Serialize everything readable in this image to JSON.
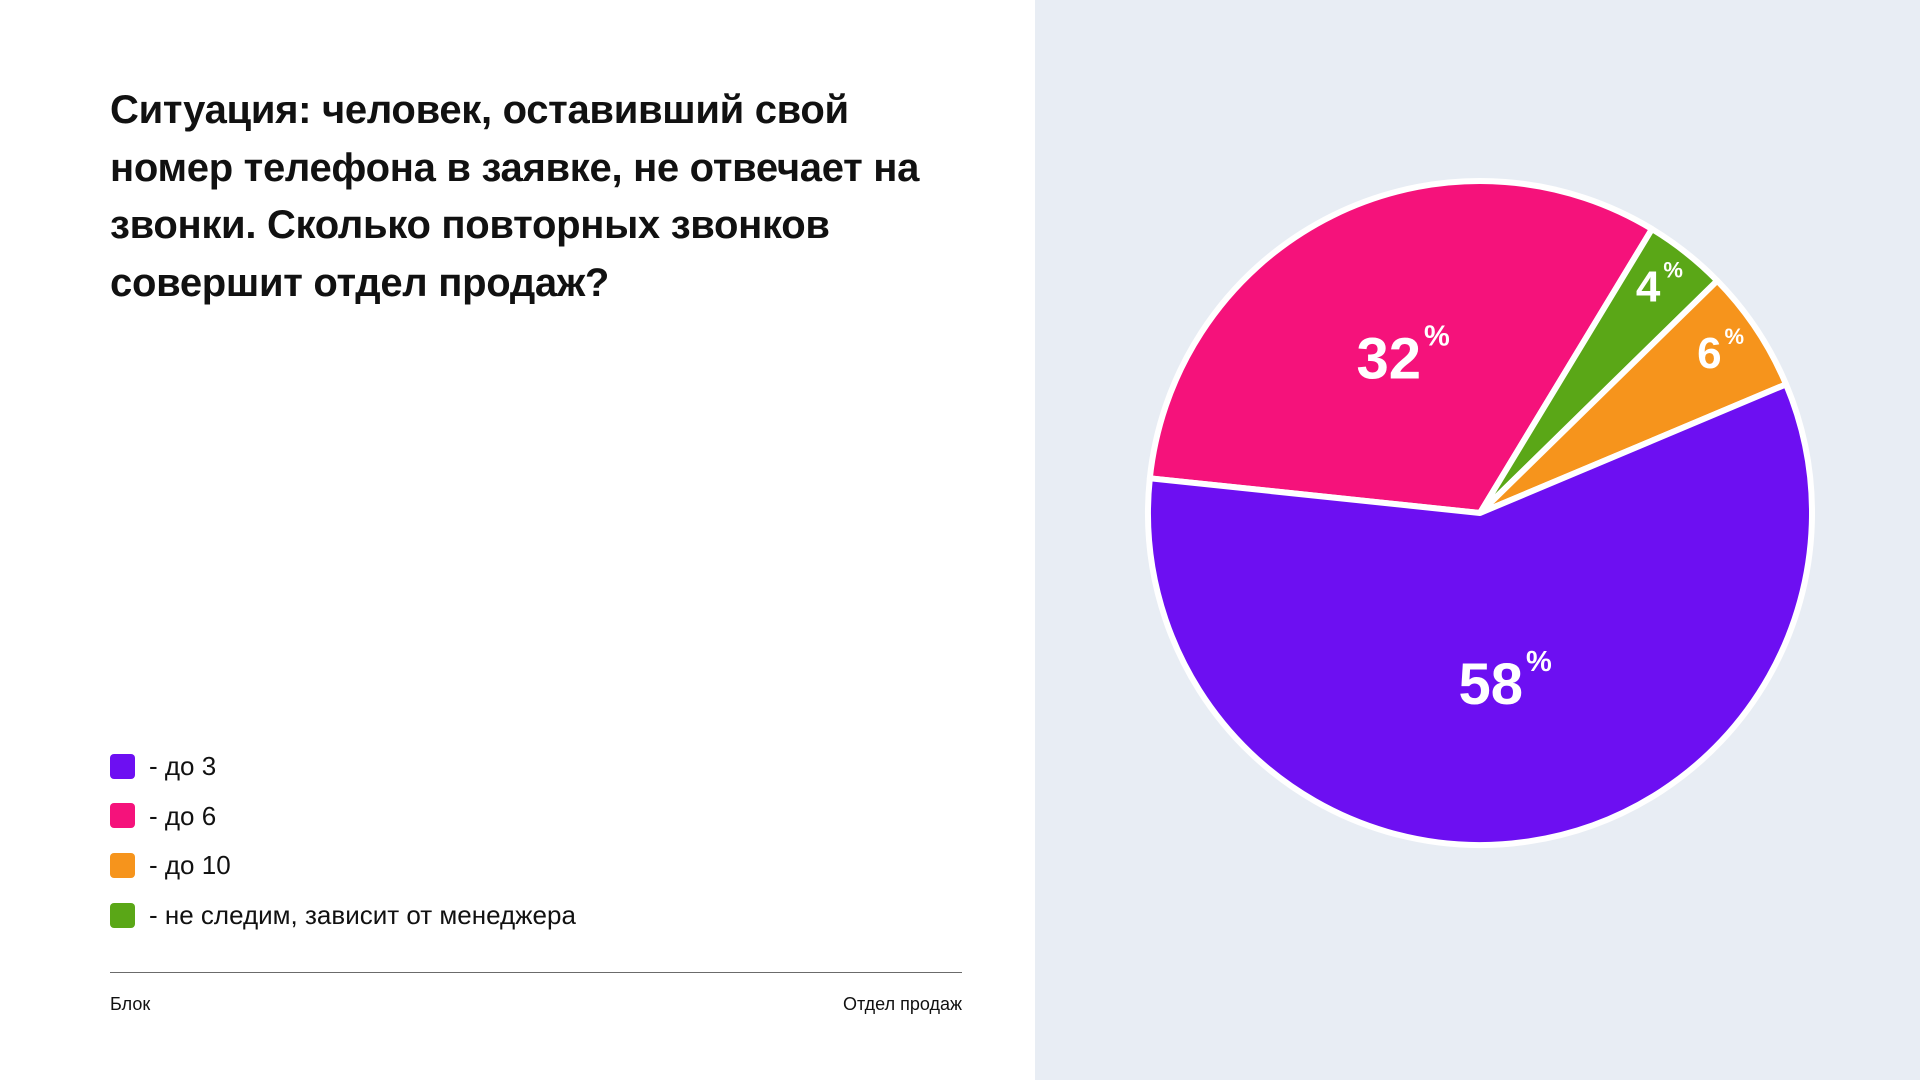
{
  "page": {
    "background": "#ffffff",
    "panel_background": "#e8edf4",
    "text_color": "#141414"
  },
  "question": {
    "title": "Ситуация: человек, оставивший свой номер телефона в заявке, не отвечает на звонки. Сколько повторных звонков совершит отдел продаж?"
  },
  "legend": {
    "items": [
      {
        "label": "- до 3",
        "color": "#6d0ff2"
      },
      {
        "label": "- до 6",
        "color": "#f5127b"
      },
      {
        "label": "- до 10",
        "color": "#f6941c"
      },
      {
        "label": "- не следим, зависит от менеджера",
        "color": "#5aa717"
      }
    ]
  },
  "footer": {
    "left": "Блок",
    "right": "Отдел продаж"
  },
  "chart_data": {
    "type": "pie",
    "unit": "%",
    "categories": [
      "до 3",
      "до 6",
      "до 10",
      "не следим, зависит от менеджера"
    ],
    "values": [
      58,
      32,
      6,
      4
    ],
    "slices_draw_order": [
      {
        "label": "до 6",
        "value": 32,
        "color": "#f5127b"
      },
      {
        "label": "не следим, зависит от менеджера",
        "value": 4,
        "color": "#5aa717"
      },
      {
        "label": "до 10",
        "value": 6,
        "color": "#f6941c"
      },
      {
        "label": "до 3",
        "value": 58,
        "color": "#6d0ff2"
      }
    ],
    "start_angle_deg": 174,
    "direction": "clockwise",
    "stroke_color": "#ffffff",
    "value_labels_color": "#ffffff",
    "legend_position": "left"
  }
}
